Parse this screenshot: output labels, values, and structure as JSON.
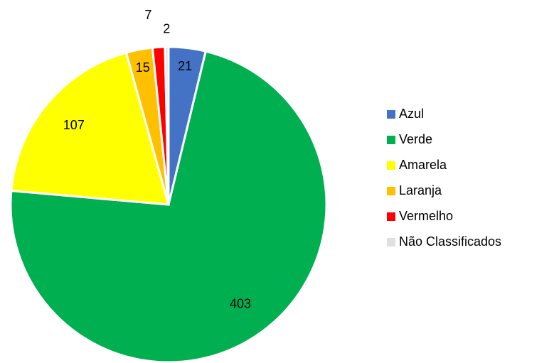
{
  "chart_data": {
    "type": "pie",
    "categories": [
      "Azul",
      "Verde",
      "Amarela",
      "Laranja",
      "Vermelho",
      "Não Classificados"
    ],
    "values": [
      21,
      403,
      107,
      15,
      7,
      2
    ],
    "colors": [
      "#4472c4",
      "#00b050",
      "#ffff00",
      "#ffc000",
      "#ff0000",
      "#e0e0e0"
    ]
  }
}
